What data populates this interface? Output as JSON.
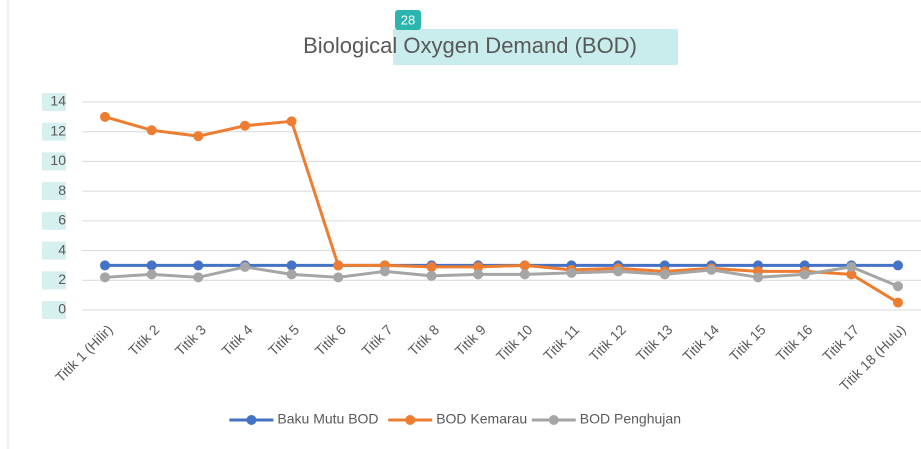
{
  "chart_data": {
    "type": "line",
    "title": "Biological Oxygen Demand (BOD)",
    "annotation": "28",
    "categories": [
      "Titik 1 (Hilir)",
      "Titik 2",
      "Titik 3",
      "Titik 4",
      "Titik 5",
      "Titik 6",
      "Titik 7",
      "Titik 8",
      "Titik 9",
      "Titik 10",
      "Titik 11",
      "Titik 12",
      "Titik 13",
      "Titik 14",
      "Titik 15",
      "Titik 16",
      "Titik 17",
      "Titik 18 (Hulu)"
    ],
    "series": [
      {
        "name": "Baku Mutu BOD",
        "color": "#4472c4",
        "values": [
          3,
          3,
          3,
          3,
          3,
          3,
          3,
          3,
          3,
          3,
          3,
          3,
          3,
          3,
          3,
          3,
          3,
          3
        ]
      },
      {
        "name": "BOD Kemarau",
        "color": "#ed7d31",
        "values": [
          13,
          12.1,
          11.7,
          12.4,
          12.7,
          3.0,
          3.0,
          2.9,
          2.9,
          3.0,
          2.7,
          2.8,
          2.6,
          2.8,
          2.6,
          2.6,
          2.4,
          0.5
        ]
      },
      {
        "name": "BOD Penghujan",
        "color": "#a5a5a5",
        "values": [
          2.2,
          2.4,
          2.2,
          2.9,
          2.4,
          2.2,
          2.6,
          2.3,
          2.4,
          2.4,
          2.5,
          2.6,
          2.4,
          2.7,
          2.2,
          2.4,
          2.9,
          1.6
        ]
      }
    ],
    "ylim": [
      0,
      14
    ],
    "yticks": [
      0,
      2,
      4,
      6,
      8,
      10,
      12,
      14
    ],
    "grid": true,
    "legend": "bottom"
  }
}
